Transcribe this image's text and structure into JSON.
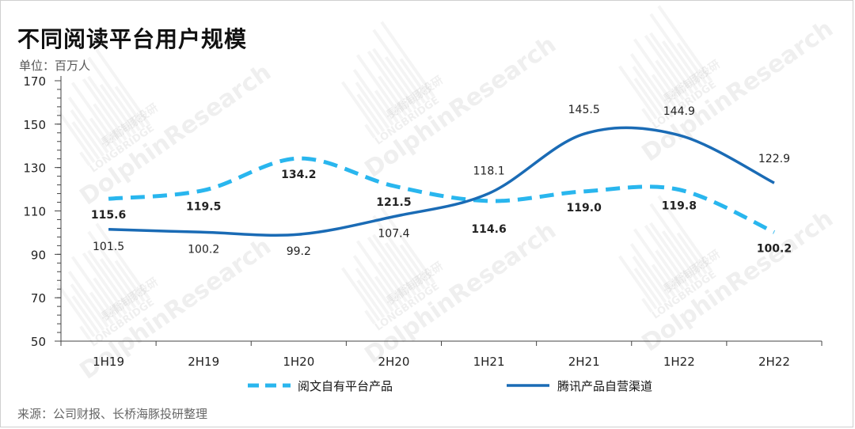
{
  "header": {
    "title": "不同阅读平台用户规模",
    "unit": "单位：百万人"
  },
  "footer": {
    "source": "来源：公司财报、长桥海豚投研整理"
  },
  "watermark": {
    "brand": "DolphinResearch",
    "sub_en": "LONGBRIDGE",
    "sub_cn": "長橋海豚投研"
  },
  "colors": {
    "series1": "#29b6ee",
    "series2": "#1a6bb5",
    "axis": "#444444"
  },
  "chart_data": {
    "type": "line",
    "title": "不同阅读平台用户规模",
    "ylabel": "单位：百万人",
    "xlabel": "",
    "categories": [
      "1H19",
      "2H19",
      "1H20",
      "2H20",
      "1H21",
      "2H21",
      "1H22",
      "2H22"
    ],
    "yticks": [
      50,
      70,
      90,
      110,
      130,
      150,
      170
    ],
    "ylim": [
      50,
      170
    ],
    "grid": false,
    "legend_position": "bottom",
    "series": [
      {
        "name": "阅文自有平台产品",
        "style": "dashed",
        "color": "#29b6ee",
        "values": [
          115.6,
          119.5,
          134.2,
          121.5,
          114.6,
          119.0,
          119.8,
          100.2
        ],
        "labels": [
          "115.6",
          "119.5",
          "134.2",
          "121.5",
          "114.6",
          "119.0",
          "119.8",
          "100.2"
        ]
      },
      {
        "name": "腾讯产品自营渠道",
        "style": "solid",
        "color": "#1a6bb5",
        "values": [
          101.5,
          100.2,
          99.2,
          107.4,
          118.1,
          145.5,
          144.9,
          122.9
        ],
        "labels": [
          "101.5",
          "100.2",
          "99.2",
          "107.4",
          "118.1",
          "145.5",
          "144.9",
          "122.9"
        ]
      }
    ]
  }
}
